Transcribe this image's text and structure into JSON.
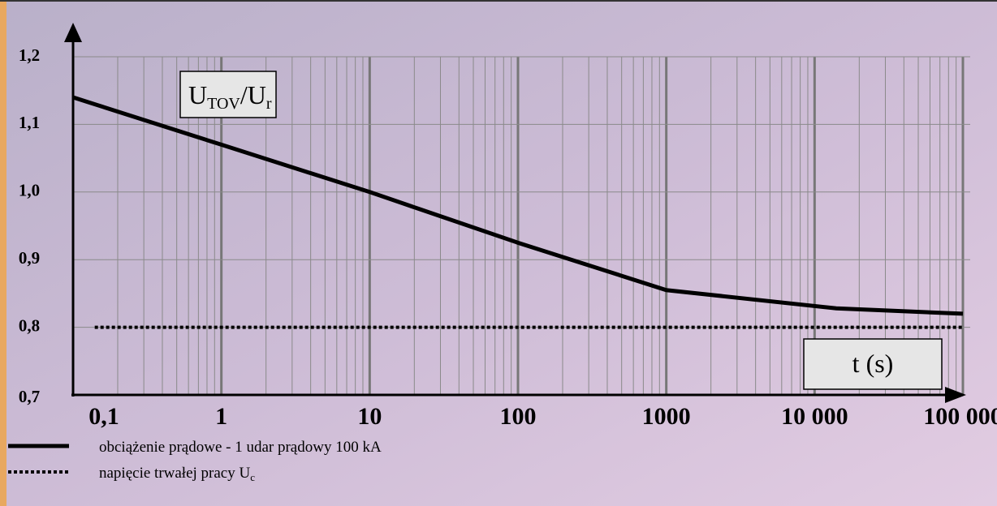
{
  "chart_data": {
    "type": "line",
    "y_label": {
      "main": "U",
      "sub": "TOV",
      "main2": "/U",
      "sub2": "r"
    },
    "x_label": "t (s)",
    "xscale": "log",
    "xlim": [
      0.1,
      100000
    ],
    "ylim": [
      0.7,
      1.2
    ],
    "xticks": [
      {
        "value": 0.1,
        "label": "0,1"
      },
      1,
      10,
      100,
      1000,
      {
        "value": 10000,
        "label": "10 000"
      },
      {
        "value": 100000,
        "label": "100 000"
      }
    ],
    "yticks": [
      {
        "value": 0.7,
        "label": "0,7"
      },
      {
        "value": 0.8,
        "label": "0,8"
      },
      {
        "value": 0.9,
        "label": "0,9"
      },
      {
        "value": 1.0,
        "label": "1,0"
      },
      {
        "value": 1.1,
        "label": "1,1"
      },
      {
        "value": 1.2,
        "label": "1,2"
      }
    ],
    "grid": true,
    "series": [
      {
        "name": "obciążenie prądowe - 1 udar prądowy 100 kA",
        "color": "#000000",
        "dash": "solid",
        "x": [
          0.1,
          1,
          10,
          100,
          1000,
          14000,
          100000
        ],
        "values": [
          1.14,
          1.07,
          1.0,
          0.925,
          0.855,
          0.828,
          0.82
        ]
      },
      {
        "name": "napięcie trwałej pracy U",
        "name_sub": "c",
        "color": "#000000",
        "dash": "dotted",
        "x": [
          0.14,
          100000
        ],
        "values": [
          0.8,
          0.8
        ]
      }
    ]
  }
}
